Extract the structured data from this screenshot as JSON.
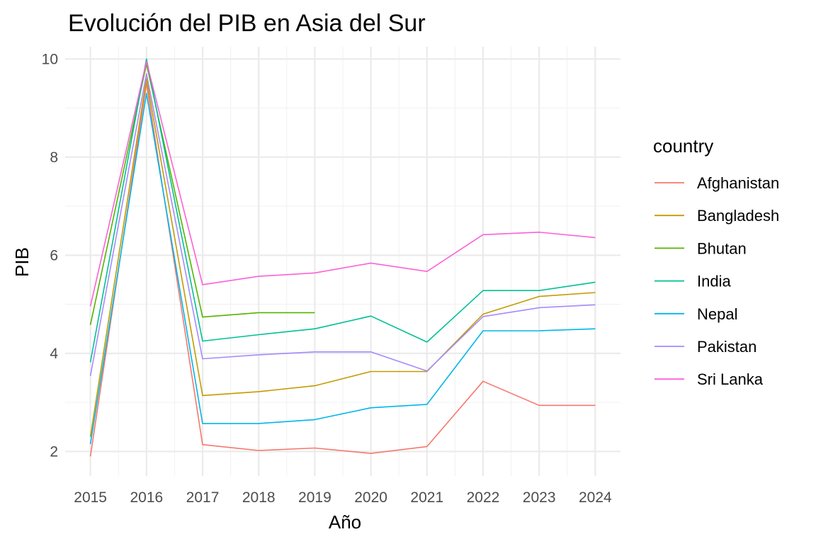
{
  "chart_data": {
    "type": "line",
    "title": "Evolución del PIB en Asia del Sur",
    "xlabel": "Año",
    "ylabel": "PIB",
    "x": [
      2015,
      2016,
      2017,
      2018,
      2019,
      2020,
      2021,
      2022,
      2023,
      2024
    ],
    "xlim": [
      2014.55,
      2024.45
    ],
    "ylim": [
      1.5,
      10.25
    ],
    "y_ticks": [
      2,
      4,
      6,
      8,
      10
    ],
    "grid": true,
    "legend": {
      "title": "country",
      "position": "right"
    },
    "series": [
      {
        "name": "Afghanistan",
        "color": "#F8766D",
        "values": [
          1.9,
          9.5,
          2.14,
          2.02,
          2.07,
          1.96,
          2.1,
          3.43,
          2.94,
          2.94
        ]
      },
      {
        "name": "Bangladesh",
        "color": "#C49A00",
        "values": [
          2.3,
          9.6,
          3.14,
          3.22,
          3.34,
          3.63,
          3.63,
          4.8,
          5.16,
          5.24
        ]
      },
      {
        "name": "Bhutan",
        "color": "#53B400",
        "values": [
          4.58,
          9.9,
          4.74,
          4.83,
          4.83,
          null,
          null,
          null,
          null,
          null
        ]
      },
      {
        "name": "India",
        "color": "#00C094",
        "values": [
          3.82,
          10.0,
          4.25,
          4.38,
          4.5,
          4.76,
          4.23,
          5.28,
          5.28,
          5.45
        ]
      },
      {
        "name": "Nepal",
        "color": "#00B6EB",
        "values": [
          2.15,
          9.3,
          2.57,
          2.57,
          2.65,
          2.89,
          2.96,
          4.46,
          4.46,
          4.5
        ]
      },
      {
        "name": "Pakistan",
        "color": "#A58AFF",
        "values": [
          3.54,
          9.7,
          3.89,
          3.97,
          4.03,
          4.03,
          3.64,
          4.75,
          4.93,
          4.99
        ]
      },
      {
        "name": "Sri Lanka",
        "color": "#FB61D7",
        "values": [
          4.96,
          9.95,
          5.4,
          5.57,
          5.64,
          5.84,
          5.67,
          6.42,
          6.47,
          6.36
        ]
      }
    ]
  }
}
